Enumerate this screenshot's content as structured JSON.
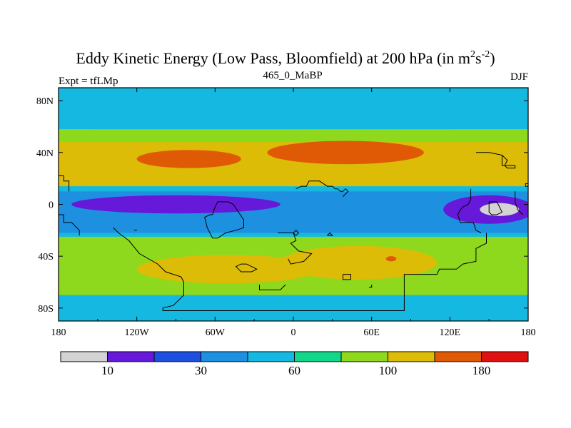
{
  "chart_data": {
    "type": "heatmap",
    "title": "Eddy Kinetic Energy (Low Pass, Bloomfield) at 200 hPa (in m",
    "title_units": {
      "base1": "2",
      "s": "s",
      "exp2": "-2",
      "close": ")"
    },
    "left_label": "Expt = tfLMp",
    "center_label": "465_0_MaBP",
    "right_label": "DJF",
    "xlabel": "",
    "ylabel": "",
    "xlim": [
      -180,
      180
    ],
    "ylim": [
      -90,
      90
    ],
    "x_ticks": [
      {
        "value": -180,
        "label": "180"
      },
      {
        "value": -120,
        "label": "120W"
      },
      {
        "value": -60,
        "label": "60W"
      },
      {
        "value": 0,
        "label": "0"
      },
      {
        "value": 60,
        "label": "60E"
      },
      {
        "value": 120,
        "label": "120E"
      },
      {
        "value": 180,
        "label": "180"
      }
    ],
    "y_ticks": [
      {
        "value": 80,
        "label": "80N"
      },
      {
        "value": 40,
        "label": "40N"
      },
      {
        "value": 0,
        "label": "0"
      },
      {
        "value": -40,
        "label": "40S"
      },
      {
        "value": -80,
        "label": "80S"
      }
    ],
    "colorbar": {
      "colors": [
        "#d3d3d3",
        "#6619d9",
        "#1f4fe0",
        "#1e90e0",
        "#14b8e0",
        "#12d68a",
        "#8ed81e",
        "#dcbc06",
        "#e05a06",
        "#e01010"
      ],
      "tick_labels": [
        {
          "after_box": 1,
          "label": "10"
        },
        {
          "after_box": 3,
          "label": "30"
        },
        {
          "after_box": 5,
          "label": "60"
        },
        {
          "after_box": 7,
          "label": "100"
        },
        {
          "after_box": 9,
          "label": "180"
        }
      ]
    },
    "field_regions": [
      {
        "level": 4,
        "kind": "band",
        "lat_top": 90,
        "lat_bottom": 50,
        "description": "polar/high-latitude north background"
      },
      {
        "level": 6,
        "kind": "band",
        "lat_top": 58,
        "lat_bottom": 10,
        "description": "northern mid-latitude jet envelope"
      },
      {
        "level": 7,
        "kind": "band",
        "lat_top": 48,
        "lat_bottom": 14,
        "description": "northern jet core"
      },
      {
        "level": 8,
        "kind": "blob",
        "lon": -80,
        "lat": 35,
        "lon_span": 80,
        "lat_span": 14
      },
      {
        "level": 8,
        "kind": "blob",
        "lon": 40,
        "lat": 40,
        "lon_span": 120,
        "lat_span": 18
      },
      {
        "level": 4,
        "kind": "band",
        "lat_top": 14,
        "lat_bottom": -30,
        "description": "tropical belt"
      },
      {
        "level": 3,
        "kind": "band",
        "lat_top": 10,
        "lat_bottom": -22,
        "description": "equatorial minimum envelope"
      },
      {
        "level": 1,
        "kind": "blob",
        "lon": -90,
        "lat": 0,
        "lon_span": 160,
        "lat_span": 14
      },
      {
        "level": 1,
        "kind": "blob",
        "lon": 150,
        "lat": -4,
        "lon_span": 70,
        "lat_span": 22
      },
      {
        "level": 0,
        "kind": "blob",
        "lon": 158,
        "lat": -4,
        "lon_span": 30,
        "lat_span": 10
      },
      {
        "level": 6,
        "kind": "band",
        "lat_top": -25,
        "lat_bottom": -78,
        "description": "southern storm-track envelope"
      },
      {
        "level": 7,
        "kind": "blob",
        "lon": -50,
        "lat": -50,
        "lon_span": 140,
        "lat_span": 22
      },
      {
        "level": 7,
        "kind": "blob",
        "lon": 50,
        "lat": -45,
        "lon_span": 120,
        "lat_span": 26
      },
      {
        "level": 8,
        "kind": "blob",
        "lon": 75,
        "lat": -42,
        "lon_span": 8,
        "lat_span": 4
      },
      {
        "level": 4,
        "kind": "band",
        "lat_top": -70,
        "lat_bottom": -90,
        "description": "Antarctic background"
      }
    ]
  }
}
